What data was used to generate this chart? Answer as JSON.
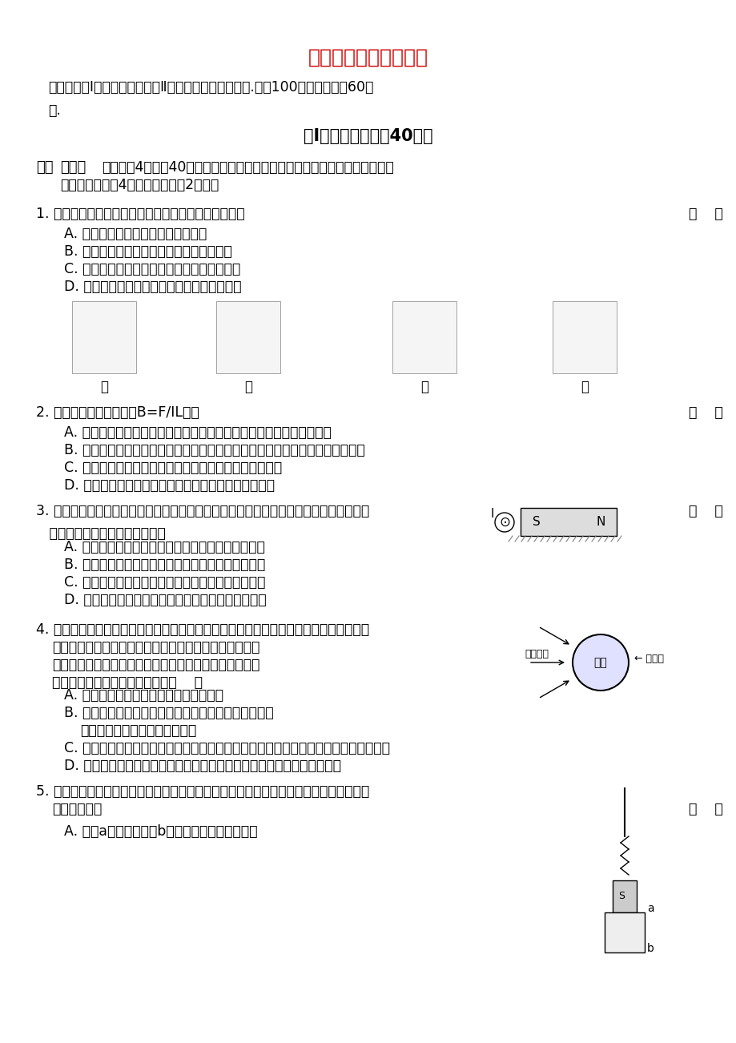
{
  "title": "第三章磁场同步测试题",
  "title_color": "#CC0000",
  "bg_color": "#FFFFFF",
  "intro_text": "本试卷分第Ⅰ卷（选择题）和第Ⅱ卷（非选择题）两部分.满分100分，考试用时60分\n钟.",
  "section1_title": "第Ⅰ卷（选择题，共40分）",
  "section1_type": "一、选择题（每小题4分，共40分。在每小题给出的四个选项中，至少有一个选项是正确\n    的，全部选对得4分，对而不全得2分。）",
  "q1_text": "1. 下列四个实验现象中，不能表明电流能产生磁场的是",
  "q1_bracket": "（    ）",
  "q1_options": [
    "A. 甲图中，导线通电后磁针发生偏转",
    "B. 乙图中，通电导线在磁场中受到力的作用",
    "C. 丙图中，当电流方向相同时，导线相互靠近",
    "D. 丁图中，当电流方向相反时，导线相互远离"
  ],
  "q2_text": "2. 由磁感应强度的定义式B=F/IL可知",
  "q2_bracket": "（    ）",
  "q2_options": [
    "A. 若某处的磁感应强度为零，则通电导线放在该处所受安培力一定为零",
    "B. 通电导线放在磁场中某处不受安培力的作用时，则该处的磁感应强度一定为零",
    "C. 同一条通电导线放在磁场中某处所受的磁场力是一定的",
    "D. 磁场中某点的磁感应强度与该点是否放通电导线无关"
  ],
  "q3_text": "3. 如图所示，一条形磁铁放在水平桌面上，在其左上方固定一根与磁铁垂直的长直导线，\n   当导线中通以图示方向的电流时",
  "q3_bracket": "（    ）",
  "q3_options": [
    "A. 磁铁对桌面的压力增大，且受到向右的摩擦力作用",
    "B. 磁铁对桌面的压力减小，且受到向右的摩擦力作用",
    "C. 磁铁对桌面的压力增大，且受到向左的摩擦力作用",
    "D. 磁铁对桌面的压力减小，且受到向左的摩擦力作用"
  ],
  "q4_text": "4. 从太阳或其他星体上放射出的宇宙射线中含有大量的高能带电粒子，这些高能粒子流到\n   达地球会对地球上的生命带来危害，但是由于地球周围存\n   在磁场，地磁场能改变宇宙射线中带电粒对地球上的生命\n   起到保护作用，如图所示。那么（    ）",
  "q4_options": [
    "A. 地磁场对宇宙射线的阻挡作用各处相同",
    "B. 地磁场对垂直射向地球表面的宇宙射线的阻挡作用在\n       南、北两极最强，赤道附近最弱",
    "C. 地磁场对垂直射向地球表面的宇宙射线的阻挡作用在南、北两极最弱，赤道附近最强",
    "D. 地磁场会使沿地球赤道平面内射来的宇宙射线中的带电粒子向两极偏转"
  ],
  "q5_text": "5. 如图所示，弹簧秤下挂一条形磁铁，其中条形磁铁的一半位于未通电的螺线管内，下列\n   说法正确的是",
  "q5_bracket": "（    ）",
  "q5_options": [
    "A. 若将a接电源正极，b接负极，弹簧秤示数减小"
  ]
}
